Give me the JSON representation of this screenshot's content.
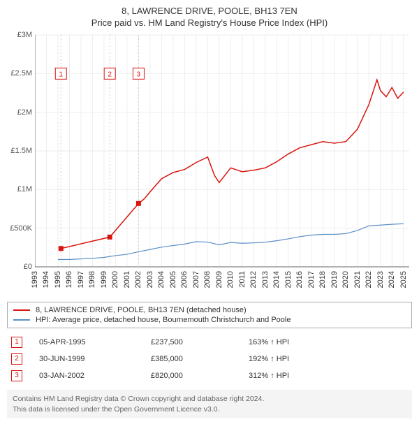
{
  "title": {
    "line1": "8, LAWRENCE DRIVE, POOLE, BH13 7EN",
    "line2": "Price paid vs. HM Land Registry's House Price Index (HPI)"
  },
  "chart": {
    "type": "line",
    "background_color": "#ffffff",
    "ylim": [
      0,
      3000000
    ],
    "ytick_step": 500000,
    "y_ticks": [
      "£0",
      "£500K",
      "£1M",
      "£1.5M",
      "£2M",
      "£2.5M",
      "£3M"
    ],
    "xlim": [
      1993,
      2025.5
    ],
    "x_ticks": [
      1993,
      1994,
      1995,
      1996,
      1997,
      1998,
      1999,
      2000,
      2001,
      2002,
      2003,
      2004,
      2005,
      2006,
      2007,
      2008,
      2009,
      2010,
      2011,
      2012,
      2013,
      2014,
      2015,
      2016,
      2017,
      2018,
      2019,
      2020,
      2021,
      2022,
      2023,
      2024,
      2025
    ],
    "grid_color": "#eeeeee",
    "axis_color": "#666666",
    "series": [
      {
        "name": "property",
        "color": "#d9150f",
        "width": 1.5,
        "points": [
          [
            1995.26,
            237500
          ],
          [
            1999.5,
            385000
          ],
          [
            2002.0,
            820000
          ],
          [
            2002.5,
            880000
          ],
          [
            2003,
            970000
          ],
          [
            2004,
            1140000
          ],
          [
            2005,
            1220000
          ],
          [
            2006,
            1260000
          ],
          [
            2007,
            1350000
          ],
          [
            2008,
            1420000
          ],
          [
            2008.6,
            1180000
          ],
          [
            2009,
            1090000
          ],
          [
            2010,
            1280000
          ],
          [
            2011,
            1230000
          ],
          [
            2012,
            1250000
          ],
          [
            2013,
            1280000
          ],
          [
            2014,
            1360000
          ],
          [
            2015,
            1460000
          ],
          [
            2016,
            1540000
          ],
          [
            2017,
            1580000
          ],
          [
            2018,
            1620000
          ],
          [
            2019,
            1600000
          ],
          [
            2020,
            1620000
          ],
          [
            2021,
            1780000
          ],
          [
            2022,
            2100000
          ],
          [
            2022.7,
            2420000
          ],
          [
            2023,
            2280000
          ],
          [
            2023.5,
            2200000
          ],
          [
            2024,
            2320000
          ],
          [
            2024.5,
            2180000
          ],
          [
            2025,
            2260000
          ]
        ]
      },
      {
        "name": "hpi",
        "color": "#5a8fc7",
        "width": 1.2,
        "points": [
          [
            1995,
            95000
          ],
          [
            1996,
            96000
          ],
          [
            1997,
            102000
          ],
          [
            1998,
            110000
          ],
          [
            1999,
            122000
          ],
          [
            2000,
            145000
          ],
          [
            2001,
            162000
          ],
          [
            2002,
            195000
          ],
          [
            2003,
            225000
          ],
          [
            2004,
            255000
          ],
          [
            2005,
            275000
          ],
          [
            2006,
            295000
          ],
          [
            2007,
            325000
          ],
          [
            2008,
            320000
          ],
          [
            2009,
            285000
          ],
          [
            2010,
            315000
          ],
          [
            2011,
            305000
          ],
          [
            2012,
            310000
          ],
          [
            2013,
            318000
          ],
          [
            2014,
            338000
          ],
          [
            2015,
            362000
          ],
          [
            2016,
            390000
          ],
          [
            2017,
            410000
          ],
          [
            2018,
            420000
          ],
          [
            2019,
            420000
          ],
          [
            2020,
            430000
          ],
          [
            2021,
            470000
          ],
          [
            2022,
            530000
          ],
          [
            2023,
            540000
          ],
          [
            2024,
            550000
          ],
          [
            2025,
            558000
          ]
        ]
      }
    ],
    "sale_markers": [
      {
        "n": "1",
        "x": 1995.26,
        "y": 237500
      },
      {
        "n": "2",
        "x": 1999.5,
        "y": 385000
      },
      {
        "n": "3",
        "x": 2002.0,
        "y": 820000
      }
    ],
    "marker_border_color": "#d9150f",
    "marker_text_color": "#d9150f",
    "marker_bg": "#ffffff",
    "tick_font_size": 11
  },
  "legend": {
    "items": [
      {
        "label": "8, LAWRENCE DRIVE, POOLE, BH13 7EN (detached house)",
        "color": "#d9150f"
      },
      {
        "label": "HPI: Average price, detached house, Bournemouth Christchurch and Poole",
        "color": "#5a8fc7"
      }
    ]
  },
  "sales": [
    {
      "n": "1",
      "date": "05-APR-1995",
      "price": "£237,500",
      "delta": "163% ↑ HPI"
    },
    {
      "n": "2",
      "date": "30-JUN-1999",
      "price": "£385,000",
      "delta": "192% ↑ HPI"
    },
    {
      "n": "3",
      "date": "03-JAN-2002",
      "price": "£820,000",
      "delta": "312% ↑ HPI"
    }
  ],
  "footer": {
    "line1": "Contains HM Land Registry data © Crown copyright and database right 2024.",
    "line2": "This data is licensed under the Open Government Licence v3.0."
  }
}
